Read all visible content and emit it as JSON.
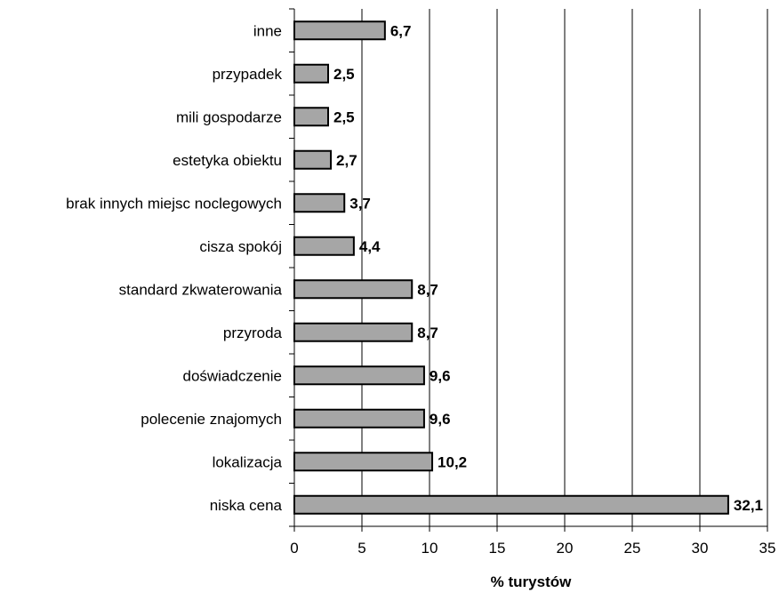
{
  "chart_data": {
    "type": "bar",
    "orientation": "horizontal",
    "categories": [
      "niska cena",
      "lokalizacja",
      "polecenie znajomych",
      "doświadczenie",
      "przyroda",
      "standard zkwaterowania",
      "cisza spokój",
      "brak innych miejsc noclegowych",
      "estetyka obiektu",
      "mili gospodarze",
      "przypadek",
      "inne"
    ],
    "values": [
      32.1,
      10.2,
      9.6,
      9.6,
      8.7,
      8.7,
      4.4,
      3.7,
      2.7,
      2.5,
      2.5,
      6.7
    ],
    "value_labels": [
      "32,1",
      "10,2",
      "9,6",
      "9,6",
      "8,7",
      "8,7",
      "4,4",
      "3,7",
      "2,7",
      "2,5",
      "2,5",
      "6,7"
    ],
    "title": "",
    "xlabel": "% turystów",
    "ylabel": "",
    "xlim": [
      0,
      35
    ],
    "xticks": [
      0,
      5,
      10,
      15,
      20,
      25,
      30,
      35
    ],
    "grid": "vertical",
    "legend": "none",
    "colors": {
      "bar_fill": "#a6a6a6",
      "bar_stroke": "#000000",
      "grid": "#000000"
    }
  }
}
